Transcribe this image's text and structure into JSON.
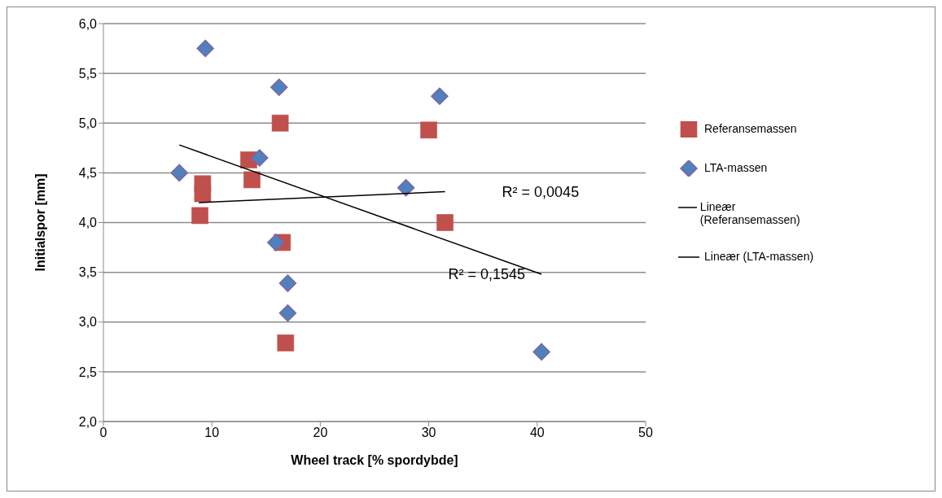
{
  "chart_data": {
    "type": "scatter",
    "xlabel": "Wheel track [% spordybde]",
    "ylabel": "Initialspor [mm]",
    "xlim": [
      0,
      50
    ],
    "xticks": [
      0,
      10,
      20,
      30,
      40,
      50
    ],
    "ylim": [
      2,
      6
    ],
    "yticks": [
      {
        "value": 2,
        "label": "2,0"
      },
      {
        "value": 2.5,
        "label": "2,5"
      },
      {
        "value": 3,
        "label": "3,0"
      },
      {
        "value": 3.5,
        "label": "3,5"
      },
      {
        "value": 4,
        "label": "4,0"
      },
      {
        "value": 4.5,
        "label": "4,5"
      },
      {
        "value": 5,
        "label": "5,0"
      },
      {
        "value": 5.5,
        "label": "5,5"
      },
      {
        "value": 6,
        "label": "6,0"
      }
    ],
    "grid": "y",
    "legend": "right",
    "series": [
      {
        "name": "Referansemassen",
        "marker": "square",
        "color": "#c0504d",
        "x": [
          16.3,
          30.0,
          13.4,
          13.7,
          9.15,
          9.15,
          8.9,
          31.5,
          16.5,
          16.8
        ],
        "values": [
          5.0,
          4.93,
          4.63,
          4.43,
          4.39,
          4.29,
          4.07,
          4.0,
          3.8,
          2.79
        ]
      },
      {
        "name": "LTA-massen",
        "marker": "diamond",
        "color": "#4f81bd",
        "x": [
          9.4,
          16.2,
          31.0,
          14.4,
          7.0,
          27.9,
          15.9,
          17.0,
          17.0,
          40.4
        ],
        "values": [
          5.75,
          5.36,
          5.27,
          4.65,
          4.5,
          4.35,
          3.8,
          3.39,
          3.09,
          2.7
        ]
      },
      {
        "name": "Lineær (Referansemassen)",
        "type": "line",
        "color": "#000000",
        "x": [
          8.8,
          31.5
        ],
        "values": [
          4.2,
          4.31
        ]
      },
      {
        "name": "Lineær (LTA-massen)",
        "type": "line",
        "color": "#000000",
        "x": [
          7.0,
          40.4
        ],
        "values": [
          4.78,
          3.48
        ]
      }
    ],
    "annotations": [
      "R² = 0,0045",
      "R² = 0,1545"
    ]
  }
}
